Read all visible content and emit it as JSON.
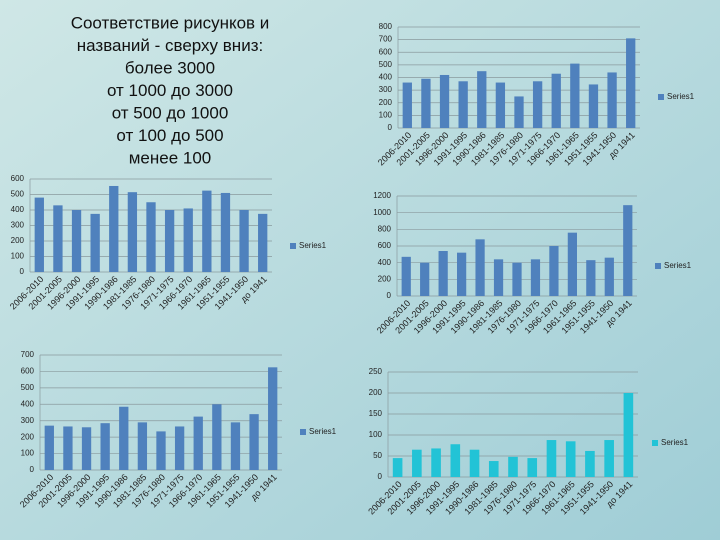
{
  "caption": [
    "Соответствие рисунков и",
    "названий - сверху вниз:",
    "более 3000",
    "от 1000 до 3000",
    "от 500 до 1000",
    "от 100 до 500",
    "менее 100"
  ],
  "chart_data": [
    {
      "type": "bar",
      "categories": [
        "2006-2010",
        "2001-2005",
        "1996-2000",
        "1991-1995",
        "1990-1986",
        "1981-1985",
        "1976-1980",
        "1971-1975",
        "1966-1970",
        "1961-1965",
        "1951-1955",
        "1941-1950",
        "до 1941"
      ],
      "series": [
        {
          "name": "Series1",
          "color": "#4f81bd",
          "values": [
            360,
            390,
            420,
            370,
            450,
            360,
            250,
            370,
            430,
            510,
            345,
            440,
            710
          ]
        }
      ],
      "ylim": [
        0,
        800
      ],
      "yticks": [
        0,
        100,
        200,
        300,
        400,
        500,
        600,
        700,
        800
      ],
      "grid": true,
      "legend": "right"
    },
    {
      "type": "bar",
      "categories": [
        "2006-2010",
        "2001-2005",
        "1996-2000",
        "1991-1995",
        "1990-1986",
        "1981-1985",
        "1976-1980",
        "1971-1975",
        "1966-1970",
        "1961-1965",
        "1951-1955",
        "1941-1950",
        "до 1941"
      ],
      "series": [
        {
          "name": "Series1",
          "color": "#4f81bd",
          "values": [
            480,
            430,
            400,
            375,
            555,
            515,
            450,
            400,
            410,
            525,
            510,
            400,
            375
          ]
        }
      ],
      "ylim": [
        0,
        600
      ],
      "yticks": [
        0,
        100,
        200,
        300,
        400,
        500,
        600
      ],
      "grid": true,
      "legend": "right"
    },
    {
      "type": "bar",
      "categories": [
        "2006-2010",
        "2001-2005",
        "1996-2000",
        "1991-1995",
        "1990-1986",
        "1981-1985",
        "1976-1980",
        "1971-1975",
        "1966-1970",
        "1961-1965",
        "1951-1955",
        "1941-1950",
        "до 1941"
      ],
      "series": [
        {
          "name": "Series1",
          "color": "#4f81bd",
          "values": [
            470,
            400,
            540,
            520,
            680,
            440,
            400,
            440,
            600,
            760,
            430,
            460,
            1090
          ]
        }
      ],
      "ylim": [
        0,
        1200
      ],
      "yticks": [
        0,
        200,
        400,
        600,
        800,
        1000,
        1200
      ],
      "grid": true,
      "legend": "right"
    },
    {
      "type": "bar",
      "categories": [
        "2006-2010",
        "2001-2005",
        "1996-2000",
        "1991-1995",
        "1990-1986",
        "1981-1985",
        "1976-1980",
        "1971-1975",
        "1966-1970",
        "1961-1965",
        "1951-1955",
        "1941-1950",
        "до 1941"
      ],
      "series": [
        {
          "name": "Series1",
          "color": "#4f81bd",
          "values": [
            270,
            265,
            260,
            285,
            385,
            290,
            235,
            265,
            325,
            400,
            290,
            340,
            625
          ]
        }
      ],
      "ylim": [
        0,
        700
      ],
      "yticks": [
        0,
        100,
        200,
        300,
        400,
        500,
        600,
        700
      ],
      "grid": true,
      "legend": "right"
    },
    {
      "type": "bar",
      "categories": [
        "2006-2010",
        "2001-2005",
        "1996-2000",
        "1991-1995",
        "1990-1986",
        "1981-1985",
        "1976-1980",
        "1971-1975",
        "1966-1970",
        "1961-1965",
        "1951-1955",
        "1941-1950",
        "до 1941"
      ],
      "series": [
        {
          "name": "Series1",
          "color": "#22c3d6",
          "values": [
            45,
            65,
            68,
            78,
            65,
            38,
            48,
            45,
            88,
            85,
            62,
            88,
            200
          ]
        }
      ],
      "ylim": [
        0,
        250
      ],
      "yticks": [
        0,
        50,
        100,
        150,
        200,
        250
      ],
      "grid": true,
      "legend": "right"
    }
  ]
}
